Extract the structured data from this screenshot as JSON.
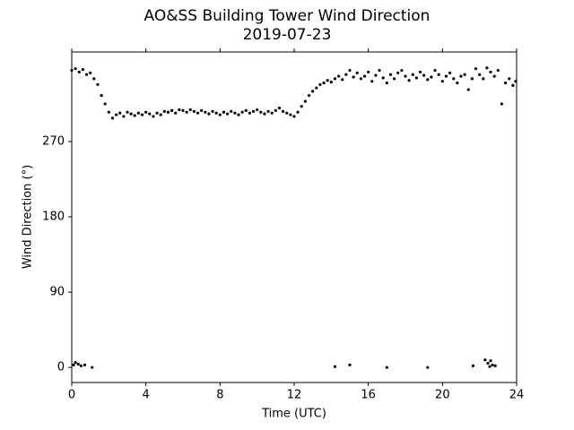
{
  "chart_data": {
    "type": "scatter",
    "title": "AO&SS Building Tower Wind Direction",
    "subtitle": "2019-07-23",
    "x_label": "Time (UTC)",
    "y_label": "Wind Direction (°)",
    "xlim": [
      0,
      24
    ],
    "xticks": [
      0,
      4,
      8,
      12,
      16,
      20,
      24
    ],
    "ylim": [
      -18,
      377
    ],
    "yticks": [
      0,
      90,
      180,
      270
    ],
    "color": "#000000",
    "x": [
      0.0,
      0.2,
      0.4,
      0.6,
      0.8,
      1.0,
      1.2,
      1.4,
      1.6,
      1.8,
      2.0,
      2.2,
      2.4,
      2.6,
      2.8,
      3.0,
      3.2,
      3.4,
      3.6,
      3.8,
      4.0,
      4.2,
      4.4,
      4.6,
      4.8,
      5.0,
      5.2,
      5.4,
      5.6,
      5.8,
      6.0,
      6.2,
      6.4,
      6.6,
      6.8,
      7.0,
      7.2,
      7.4,
      7.6,
      7.8,
      8.0,
      8.2,
      8.4,
      8.6,
      8.8,
      9.0,
      9.2,
      9.4,
      9.6,
      9.8,
      10.0,
      10.2,
      10.4,
      10.6,
      10.8,
      11.0,
      11.2,
      11.4,
      11.6,
      11.8,
      12.0,
      12.2,
      12.4,
      12.6,
      12.8,
      13.0,
      13.2,
      13.4,
      13.6,
      13.8,
      14.0,
      14.2,
      14.4,
      14.6,
      14.8,
      15.0,
      15.2,
      15.4,
      15.6,
      15.8,
      16.0,
      16.2,
      16.4,
      16.6,
      16.8,
      17.0,
      17.2,
      17.4,
      17.6,
      17.8,
      18.0,
      18.2,
      18.4,
      18.6,
      18.8,
      19.0,
      19.2,
      19.4,
      19.6,
      19.8,
      20.0,
      20.2,
      20.4,
      20.6,
      20.8,
      21.0,
      21.2,
      21.4,
      21.6,
      21.8,
      22.0,
      22.2,
      22.4,
      22.6,
      22.8,
      23.0,
      23.2,
      23.4,
      23.6,
      23.8,
      23.95,
      0.1,
      0.2,
      0.35,
      0.5,
      0.7,
      1.1,
      14.2,
      15.0,
      17.0,
      19.2,
      21.65,
      22.3,
      22.45,
      22.55,
      22.6,
      22.7,
      22.85
    ],
    "values": [
      355,
      357,
      353,
      356,
      350,
      352,
      345,
      338,
      325,
      315,
      305,
      298,
      302,
      304,
      300,
      305,
      303,
      301,
      304,
      302,
      305,
      303,
      300,
      304,
      302,
      306,
      305,
      307,
      304,
      308,
      307,
      305,
      308,
      306,
      304,
      307,
      305,
      303,
      306,
      304,
      302,
      305,
      303,
      306,
      304,
      302,
      305,
      307,
      304,
      306,
      308,
      305,
      303,
      306,
      304,
      307,
      310,
      306,
      304,
      302,
      300,
      305,
      312,
      318,
      325,
      330,
      334,
      338,
      340,
      343,
      341,
      345,
      348,
      344,
      350,
      355,
      347,
      352,
      345,
      348,
      353,
      342,
      349,
      355,
      346,
      340,
      350,
      345,
      352,
      355,
      348,
      343,
      350,
      346,
      353,
      349,
      344,
      347,
      355,
      350,
      342,
      348,
      352,
      345,
      340,
      348,
      350,
      332,
      345,
      357,
      350,
      345,
      358,
      353,
      348,
      355,
      315,
      340,
      345,
      337,
      342,
      3,
      6,
      4,
      2,
      3,
      0,
      1,
      3,
      0,
      0,
      2,
      9,
      5,
      1,
      8,
      3,
      2
    ]
  }
}
